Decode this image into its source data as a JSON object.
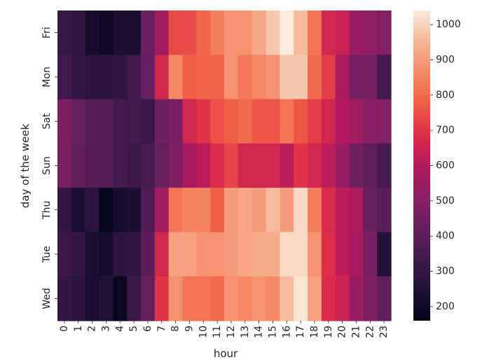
{
  "chart_data": {
    "type": "heatmap",
    "xlabel": "hour",
    "ylabel": "day of the week",
    "x": [
      "0",
      "1",
      "2",
      "3",
      "4",
      "5",
      "6",
      "7",
      "8",
      "9",
      "10",
      "11",
      "12",
      "13",
      "14",
      "15",
      "16",
      "17",
      "18",
      "19",
      "20",
      "21",
      "22",
      "23"
    ],
    "y": [
      "Fri",
      "Mon",
      "Sat",
      "Sun",
      "Thu",
      "Tue",
      "Wed"
    ],
    "values": [
      [
        310,
        290,
        220,
        200,
        240,
        240,
        430,
        560,
        740,
        740,
        790,
        840,
        880,
        880,
        920,
        980,
        1040,
        960,
        820,
        660,
        640,
        540,
        520,
        490
      ],
      [
        330,
        300,
        280,
        280,
        290,
        330,
        420,
        660,
        860,
        780,
        790,
        790,
        880,
        830,
        860,
        880,
        980,
        980,
        800,
        720,
        580,
        460,
        460,
        340
      ],
      [
        480,
        420,
        390,
        380,
        340,
        330,
        320,
        440,
        460,
        660,
        700,
        750,
        780,
        800,
        760,
        760,
        820,
        760,
        720,
        660,
        600,
        560,
        510,
        490
      ],
      [
        470,
        410,
        390,
        390,
        340,
        320,
        350,
        420,
        480,
        570,
        610,
        680,
        730,
        660,
        660,
        660,
        620,
        700,
        660,
        620,
        540,
        440,
        410,
        350
      ],
      [
        300,
        240,
        280,
        170,
        220,
        240,
        370,
        560,
        820,
        850,
        850,
        780,
        900,
        920,
        900,
        960,
        900,
        1010,
        840,
        680,
        620,
        590,
        420,
        400
      ],
      [
        320,
        300,
        230,
        220,
        280,
        290,
        400,
        660,
        910,
        910,
        880,
        880,
        900,
        920,
        930,
        930,
        1010,
        1010,
        880,
        690,
        620,
        580,
        460,
        260
      ],
      [
        300,
        280,
        240,
        250,
        180,
        320,
        420,
        700,
        880,
        820,
        820,
        800,
        880,
        860,
        880,
        860,
        960,
        1030,
        910,
        680,
        650,
        540,
        480,
        410
      ]
    ],
    "colorbar": {
      "min": 160,
      "max": 1040,
      "ticks": [
        200,
        300,
        400,
        500,
        600,
        700,
        800,
        900,
        1000
      ]
    },
    "colormap": "rocket",
    "grid": false,
    "legend": "colorbar-right"
  }
}
